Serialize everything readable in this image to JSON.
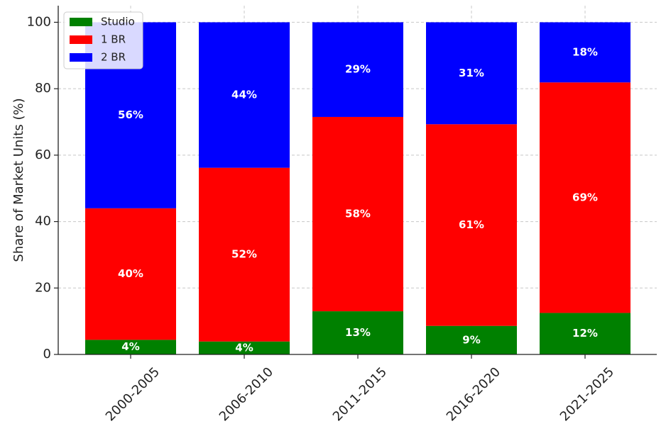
{
  "chart_data": {
    "type": "bar",
    "stacked": true,
    "title": "",
    "xlabel": "",
    "ylabel": "Share of Market Units (%)",
    "ylim": [
      0,
      105
    ],
    "yticks": [
      0,
      20,
      40,
      60,
      80,
      100
    ],
    "grid": true,
    "legend_position": "top-left",
    "categories": [
      "2000-2005",
      "2006-2010",
      "2011-2015",
      "2016-2020",
      "2021-2025"
    ],
    "series": [
      {
        "name": "Studio",
        "color": "#008000",
        "values": [
          4.4,
          3.9,
          13.0,
          8.6,
          12.5
        ],
        "labels": [
          "4%",
          "4%",
          "13%",
          "9%",
          "12%"
        ]
      },
      {
        "name": "1 BR",
        "color": "#ff0000",
        "values": [
          39.6,
          52.3,
          58.5,
          60.7,
          69.4
        ],
        "labels": [
          "40%",
          "52%",
          "58%",
          "61%",
          "69%"
        ]
      },
      {
        "name": "2 BR",
        "color": "#0000ff",
        "values": [
          56.0,
          43.8,
          28.5,
          30.7,
          18.1
        ],
        "labels": [
          "56%",
          "44%",
          "29%",
          "31%",
          "18%"
        ]
      }
    ]
  }
}
